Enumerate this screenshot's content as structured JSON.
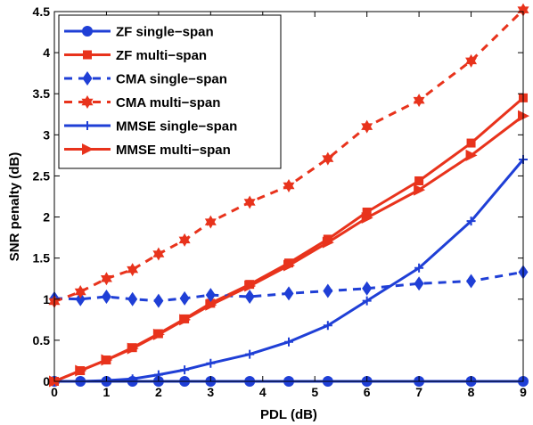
{
  "chart_data": {
    "type": "line",
    "title": "",
    "xlabel": "PDL (dB)",
    "ylabel": "SNR penalty (dB)",
    "xlim": [
      0,
      9
    ],
    "ylim": [
      0,
      4.5
    ],
    "x_ticks": [
      "0",
      "1",
      "2",
      "3",
      "4",
      "5",
      "6",
      "7",
      "8",
      "9"
    ],
    "y_ticks": [
      "0",
      "0.5",
      "1",
      "1.5",
      "2",
      "2.5",
      "3",
      "3.5",
      "4",
      "4.5"
    ],
    "grid": false,
    "legend_position": "top-left",
    "series": [
      {
        "name": "ZF single−span",
        "color": "#1f3fd6",
        "line_style": "solid",
        "marker": "circle",
        "x": [
          0,
          0.5,
          1,
          1.5,
          2,
          2.5,
          3,
          3.75,
          4.5,
          5.25,
          6,
          7,
          8,
          9
        ],
        "y": [
          0,
          0,
          0,
          0,
          0,
          0,
          0,
          0,
          0,
          0,
          0,
          0,
          0,
          0
        ]
      },
      {
        "name": "ZF multi−span",
        "color": "#e8331c",
        "line_style": "solid",
        "marker": "square",
        "x": [
          0,
          0.5,
          1,
          1.5,
          2,
          2.5,
          3,
          3.75,
          4.5,
          5.25,
          6,
          7,
          8,
          9
        ],
        "y": [
          0,
          0.13,
          0.26,
          0.41,
          0.58,
          0.76,
          0.95,
          1.18,
          1.44,
          1.73,
          2.06,
          2.44,
          2.9,
          3.45
        ]
      },
      {
        "name": "CMA single−span",
        "color": "#1f3fd6",
        "line_style": "dashed",
        "marker": "diamond",
        "x": [
          0,
          0.5,
          1,
          1.5,
          2,
          2.5,
          3,
          3.75,
          4.5,
          5.25,
          6,
          7,
          8,
          9
        ],
        "y": [
          1.01,
          1.0,
          1.03,
          1.0,
          0.98,
          1.01,
          1.05,
          1.03,
          1.07,
          1.1,
          1.13,
          1.19,
          1.22,
          1.33
        ]
      },
      {
        "name": "CMA multi−span",
        "color": "#e8331c",
        "line_style": "dashed",
        "marker": "star",
        "x": [
          0,
          0.5,
          1,
          1.5,
          2,
          2.5,
          3,
          3.75,
          4.5,
          5.25,
          6,
          7,
          8,
          9
        ],
        "y": [
          0.97,
          1.09,
          1.25,
          1.36,
          1.55,
          1.72,
          1.94,
          2.18,
          2.38,
          2.71,
          3.1,
          3.42,
          3.9,
          4.52
        ]
      },
      {
        "name": "MMSE single−span",
        "color": "#1f3fd6",
        "line_style": "solid",
        "marker": "plus",
        "x": [
          0,
          0.5,
          1,
          1.5,
          2,
          2.5,
          3,
          3.75,
          4.5,
          5.25,
          6,
          7,
          8,
          9
        ],
        "y": [
          0,
          0,
          0.01,
          0.03,
          0.08,
          0.14,
          0.22,
          0.33,
          0.48,
          0.68,
          0.98,
          1.38,
          1.95,
          2.7
        ]
      },
      {
        "name": "MMSE multi−span",
        "color": "#e8331c",
        "line_style": "solid",
        "marker": "triangle-right",
        "x": [
          0,
          0.5,
          1,
          1.5,
          2,
          2.5,
          3,
          3.75,
          4.5,
          5.25,
          6,
          7,
          8,
          9
        ],
        "y": [
          0,
          0.13,
          0.26,
          0.4,
          0.57,
          0.75,
          0.93,
          1.16,
          1.41,
          1.69,
          1.99,
          2.33,
          2.75,
          3.23
        ]
      }
    ]
  }
}
